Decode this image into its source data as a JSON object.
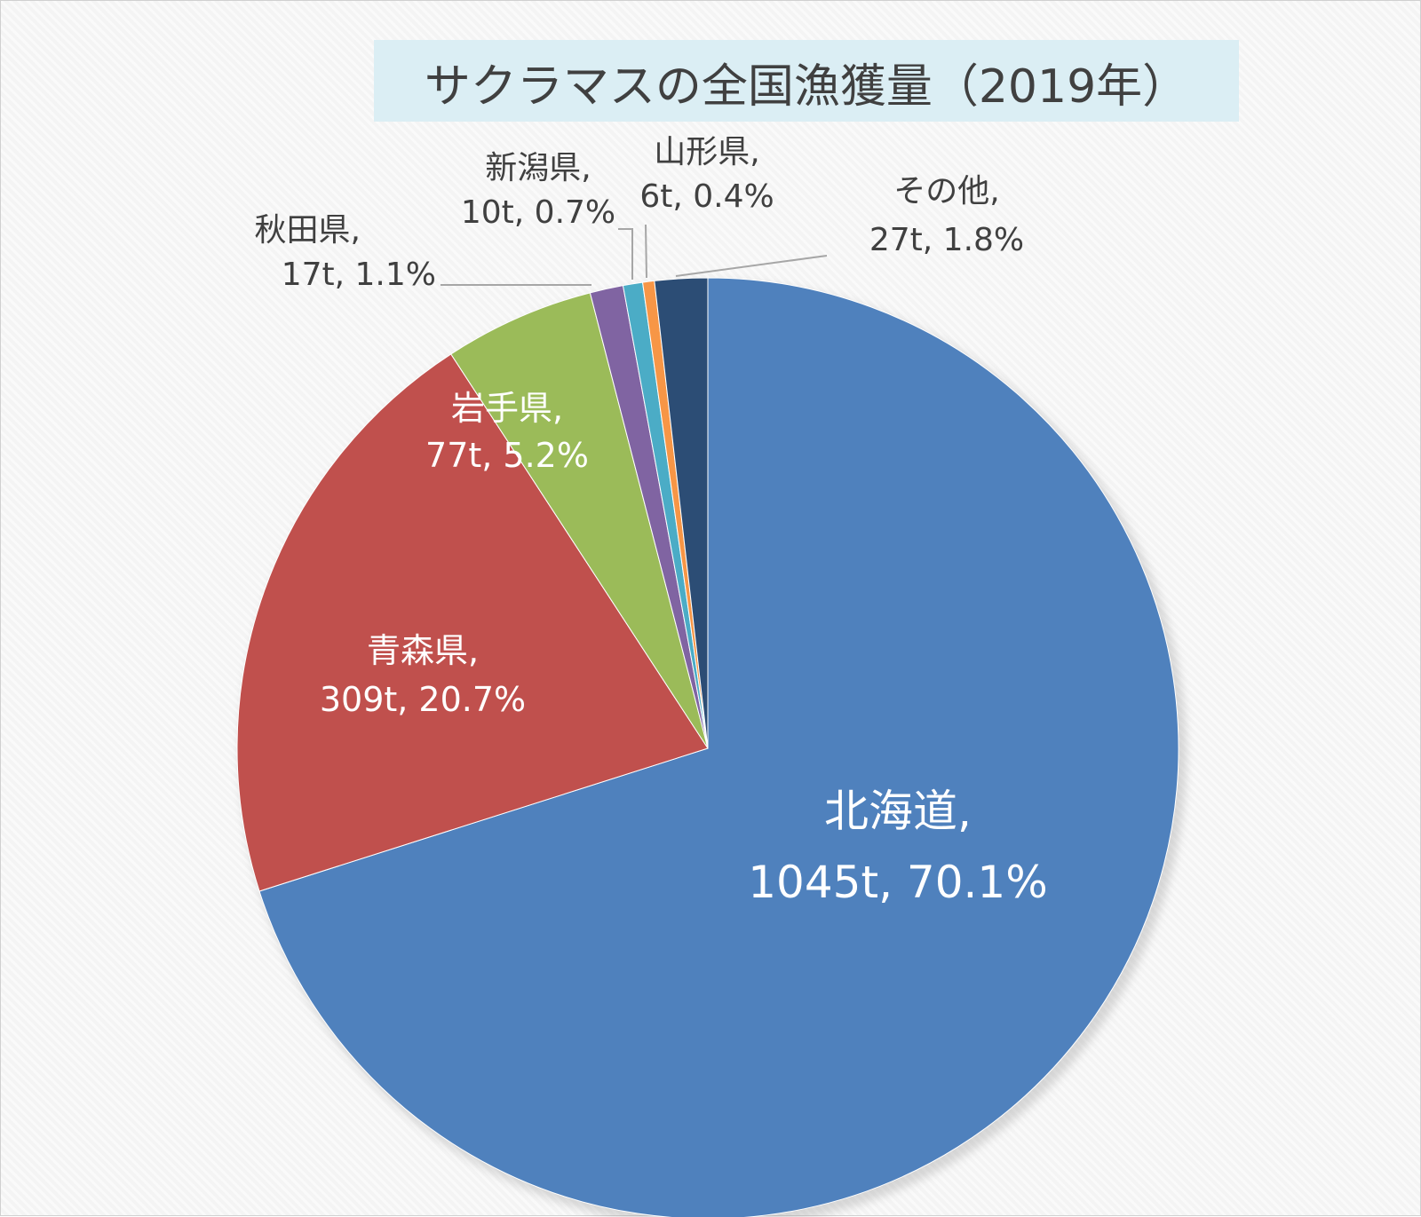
{
  "chart_data": {
    "type": "pie",
    "title": "サクラマスの全国漁獲量（2019年）",
    "slices": [
      {
        "name": "北海道",
        "value": 1045,
        "value_label": "1045t",
        "percent_label": "70.1%",
        "color": "#4f81bd"
      },
      {
        "name": "青森県",
        "value": 309,
        "value_label": "309t",
        "percent_label": "20.7%",
        "color": "#c0504d"
      },
      {
        "name": "岩手県",
        "value": 77,
        "value_label": "77t",
        "percent_label": "5.2%",
        "color": "#9bbb59"
      },
      {
        "name": "秋田県",
        "value": 17,
        "value_label": "17t",
        "percent_label": "1.1%",
        "color": "#8064a2"
      },
      {
        "name": "新潟県",
        "value": 10,
        "value_label": "10t",
        "percent_label": "0.7%",
        "color": "#4bacc6"
      },
      {
        "name": "山形県",
        "value": 6,
        "value_label": "6t",
        "percent_label": "0.4%",
        "color": "#f79646"
      },
      {
        "name": "その他",
        "value": 27,
        "value_label": "27t",
        "percent_label": "1.8%",
        "color": "#2c4d75"
      }
    ],
    "start_angle": "12 o'clock",
    "direction": "clockwise",
    "legend": "none"
  }
}
